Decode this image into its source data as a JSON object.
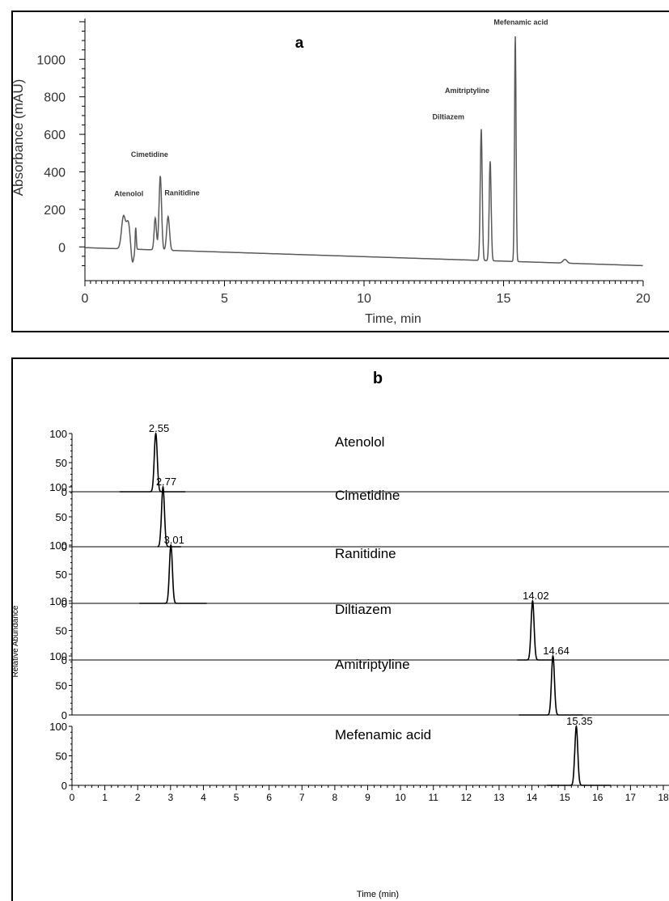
{
  "colors": {
    "line": "#000000",
    "trace_a": "#5a5a5a",
    "frame": "#000000"
  },
  "chart_data": [
    {
      "type": "line",
      "title": "a",
      "xlabel": "Time, min",
      "ylabel": "Absorbance (mAU)",
      "xlim": [
        0,
        20
      ],
      "ylim": [
        -180,
        1260
      ],
      "xticks": [
        0,
        5,
        10,
        15,
        20
      ],
      "yticks": [
        0,
        200,
        400,
        600,
        800,
        1000
      ],
      "baseline": 0,
      "drift_start": -4,
      "drift_end": -100,
      "peaks": [
        {
          "t": 1.38,
          "h": 170,
          "w": 0.07
        },
        {
          "t": 1.55,
          "h": 140,
          "w": 0.07
        },
        {
          "t": 1.7,
          "h": -80,
          "w": 0.05
        },
        {
          "t": 1.82,
          "h": 120,
          "w": 0.02
        },
        {
          "t": 2.52,
          "h": 170,
          "w": 0.04
        },
        {
          "t": 2.7,
          "h": 395,
          "w": 0.045
        },
        {
          "t": 2.98,
          "h": 180,
          "w": 0.05
        },
        {
          "t": 14.2,
          "h": 700,
          "w": 0.035
        },
        {
          "t": 14.52,
          "h": 530,
          "w": 0.035
        },
        {
          "t": 15.42,
          "h": 1200,
          "w": 0.028
        },
        {
          "t": 17.2,
          "h": 20,
          "w": 0.07
        }
      ],
      "annotations": [
        {
          "label": "Atenolol",
          "t": 1.05,
          "y": 270
        },
        {
          "label": "Cimetidine",
          "t": 1.65,
          "y": 480
        },
        {
          "label": "Ranitidine",
          "t": 2.85,
          "y": 275
        },
        {
          "label": "Diltiazem",
          "t": 12.45,
          "y": 680
        },
        {
          "label": "Amitriptyline",
          "t": 12.9,
          "y": 820
        },
        {
          "label": "Mefenamic acid",
          "t": 14.65,
          "y": 1185
        }
      ]
    },
    {
      "type": "line",
      "title": "b",
      "xlabel": "Time (min)",
      "ylabel": "Relative Abundance",
      "xlim": [
        0,
        18
      ],
      "ylim": [
        0,
        100
      ],
      "xticks": [
        0,
        1,
        2,
        3,
        4,
        5,
        6,
        7,
        8,
        9,
        10,
        11,
        12,
        13,
        14,
        15,
        16,
        17,
        18
      ],
      "yticks": [
        0,
        50,
        100
      ],
      "series": [
        {
          "name": "Atenolol",
          "rt": 2.55,
          "rt_label": "2.55",
          "width": 0.045,
          "range": [
            1.45,
            3.45
          ]
        },
        {
          "name": "Cimetidine",
          "rt": 2.77,
          "rt_label": "2.77",
          "width": 0.045,
          "range": [
            2.6,
            3.32
          ]
        },
        {
          "name": "Ranitidine",
          "rt": 3.01,
          "rt_label": "3.01",
          "width": 0.045,
          "range": [
            2.05,
            4.1
          ]
        },
        {
          "name": "Diltiazem",
          "rt": 14.02,
          "rt_label": "14.02",
          "width": 0.045,
          "range": [
            13.55,
            14.6
          ]
        },
        {
          "name": "Amitriptyline",
          "rt": 14.64,
          "rt_label": "14.64",
          "width": 0.045,
          "range": [
            13.6,
            15.55
          ]
        },
        {
          "name": "Mefenamic acid",
          "rt": 15.35,
          "rt_label": "15.35",
          "width": 0.045,
          "range": [
            14.45,
            16.4
          ]
        }
      ]
    }
  ]
}
